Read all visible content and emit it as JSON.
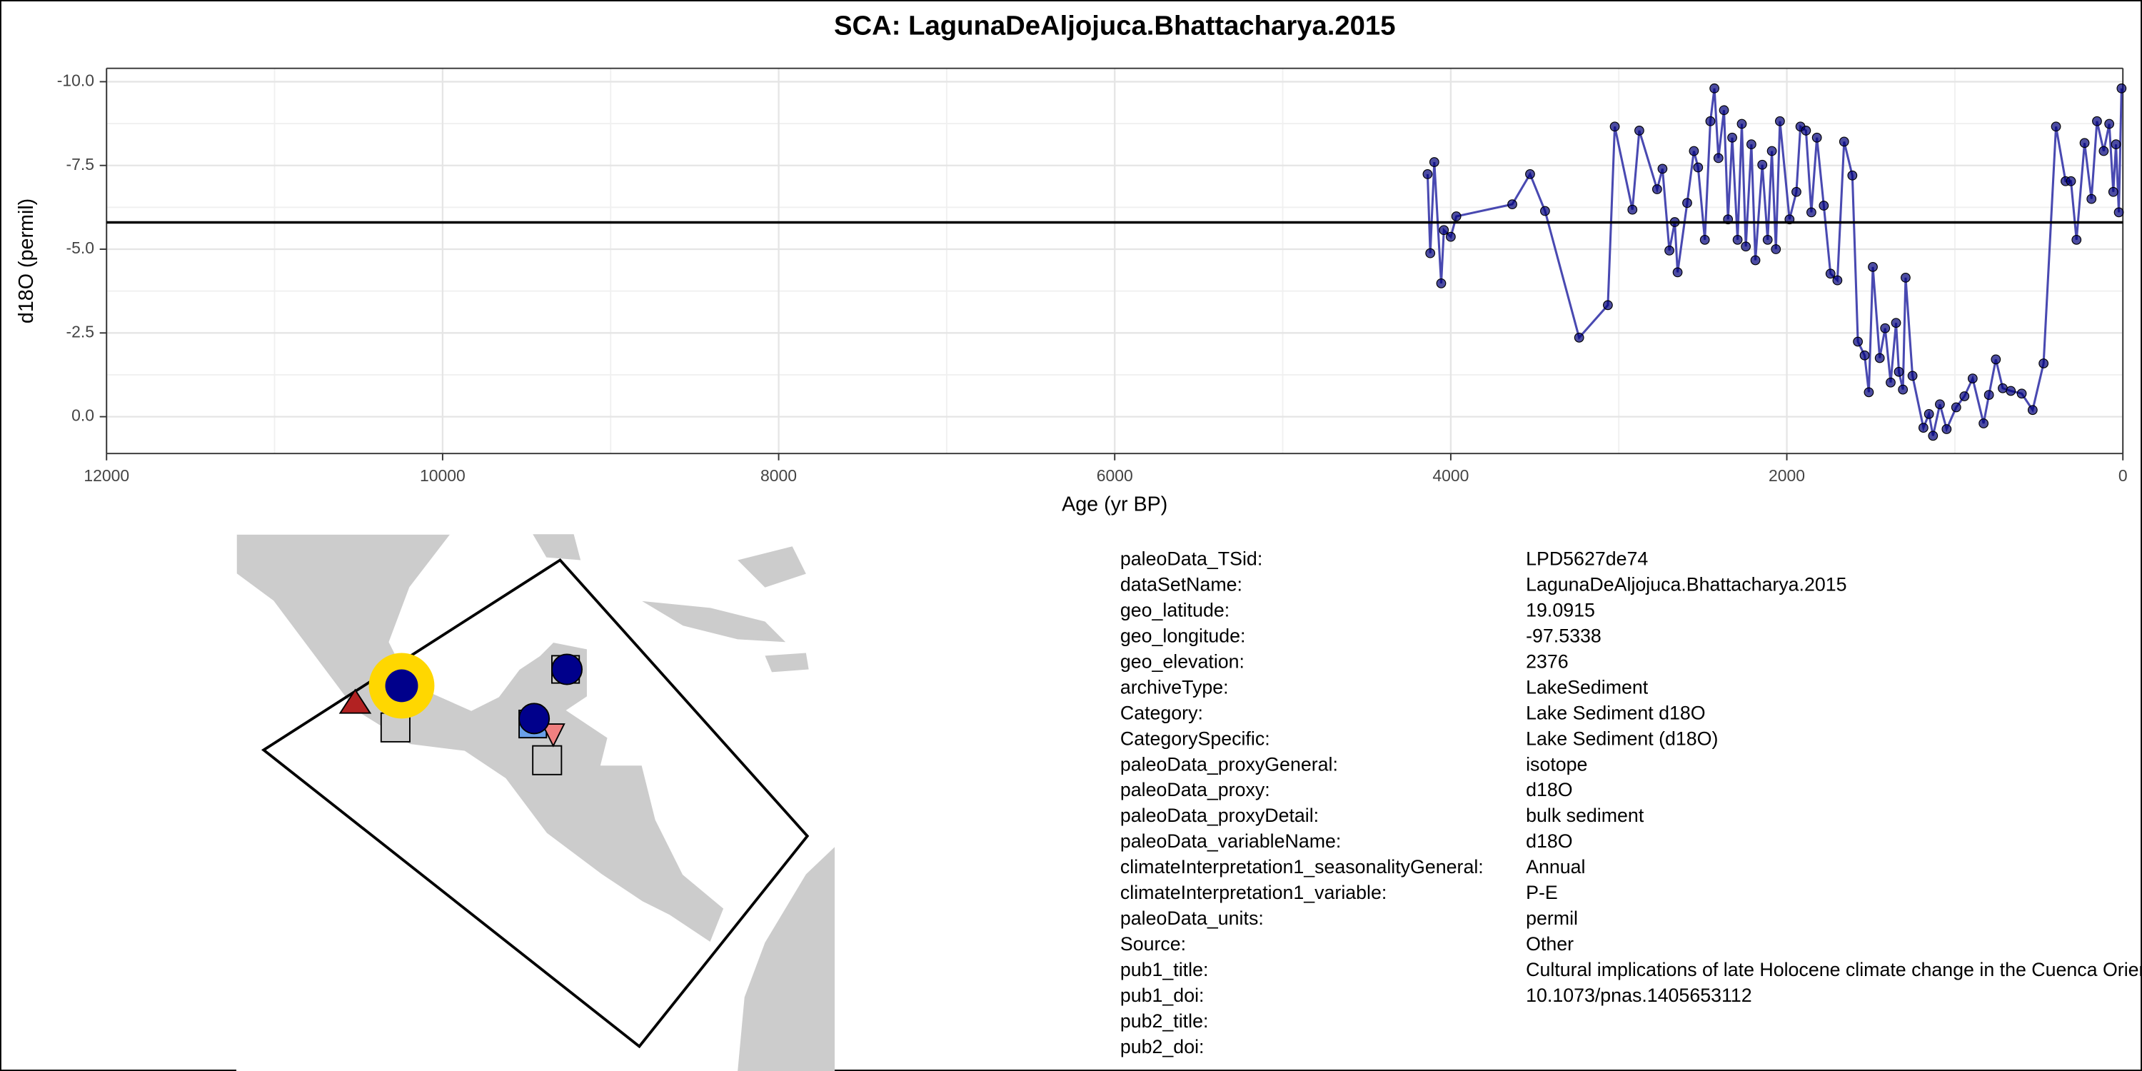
{
  "chart_data": {
    "type": "line",
    "title": "SCA: LagunaDeAljojuca.Bhattacharya.2015",
    "x_label": "Age (yr BP)",
    "y_label": "d18O (permil)",
    "xlim": [
      12000,
      0
    ],
    "xticks": [
      12000,
      10000,
      8000,
      6000,
      4000,
      2000,
      0
    ],
    "ylim": [
      1.1,
      -10.4
    ],
    "yticks": [
      {
        "value": -10,
        "label": "-10.0"
      },
      {
        "value": -7.5,
        "label": "-7.5"
      },
      {
        "value": -5,
        "label": "-5.0"
      },
      {
        "value": -2.5,
        "label": "-2.5"
      },
      {
        "value": 0,
        "label": "0.0"
      }
    ],
    "grid": true,
    "hline": -5.8,
    "series": [
      {
        "name": "d18O",
        "color": "#3535a8",
        "marker_color": "#00007a",
        "x": [
          4138,
          4122,
          4098,
          4057,
          4041,
          4000,
          3967,
          3634,
          3528,
          3439,
          3236,
          3065,
          3024,
          2919,
          2878,
          2772,
          2740,
          2699,
          2667,
          2650,
          2593,
          2553,
          2528,
          2488,
          2455,
          2431,
          2407,
          2374,
          2350,
          2325,
          2293,
          2268,
          2244,
          2211,
          2187,
          2146,
          2114,
          2089,
          2065,
          2041,
          1984,
          1943,
          1919,
          1886,
          1854,
          1821,
          1780,
          1740,
          1699,
          1659,
          1610,
          1577,
          1537,
          1512,
          1488,
          1447,
          1415,
          1382,
          1350,
          1333,
          1309,
          1293,
          1252,
          1187,
          1154,
          1130,
          1089,
          1049,
          992,
          943,
          894,
          829,
          797,
          756,
          715,
          667,
          602,
          537,
          472,
          398,
          341,
          309,
          276,
          228,
          187,
          154,
          114,
          81,
          57,
          41,
          24,
          8
        ],
        "values": [
          -7.24,
          -4.88,
          -7.6,
          -3.98,
          -5.57,
          -5.37,
          -5.98,
          -6.34,
          -7.24,
          -6.14,
          -2.36,
          -3.33,
          -8.66,
          -6.18,
          -8.54,
          -6.79,
          -7.4,
          -4.96,
          -5.81,
          -4.31,
          -6.38,
          -7.93,
          -7.44,
          -5.28,
          -8.82,
          -9.8,
          -7.72,
          -9.15,
          -5.89,
          -8.33,
          -5.28,
          -8.74,
          -5.08,
          -8.13,
          -4.67,
          -7.52,
          -5.28,
          -7.93,
          -5.0,
          -8.82,
          -5.89,
          -6.71,
          -8.66,
          -8.54,
          -6.1,
          -8.33,
          -6.3,
          -4.27,
          -4.07,
          -8.21,
          -7.2,
          -2.24,
          -1.83,
          -0.73,
          -4.47,
          -1.75,
          -2.64,
          -1.02,
          -2.8,
          -1.34,
          -0.81,
          -4.15,
          -1.22,
          0.33,
          -0.08,
          0.57,
          -0.37,
          0.37,
          -0.28,
          -0.61,
          -1.14,
          0.2,
          -0.65,
          -1.71,
          -0.85,
          -0.77,
          -0.69,
          -0.2,
          -1.59,
          -8.66,
          -7.03,
          -7.03,
          -5.28,
          -8.17,
          -6.5,
          -8.82,
          -7.93,
          -8.74,
          -6.71,
          -8.13,
          -6.1,
          -9.8
        ]
      }
    ]
  },
  "metadata": {
    "rows": [
      [
        "paleoData_TSid:",
        "LPD5627de74"
      ],
      [
        "dataSetName:",
        "LagunaDeAljojuca.Bhattacharya.2015"
      ],
      [
        "geo_latitude:",
        "19.0915"
      ],
      [
        "geo_longitude:",
        "-97.5338"
      ],
      [
        "geo_elevation:",
        "2376"
      ],
      [
        "archiveType:",
        "LakeSediment"
      ],
      [
        "Category:",
        "Lake Sediment d18O"
      ],
      [
        "CategorySpecific:",
        "Lake Sediment (d18O)"
      ],
      [
        "paleoData_proxyGeneral:",
        "isotope"
      ],
      [
        "paleoData_proxy:",
        "d18O"
      ],
      [
        "paleoData_proxyDetail:",
        "bulk sediment"
      ],
      [
        "paleoData_variableName:",
        "d18O"
      ],
      [
        "climateInterpretation1_seasonalityGeneral:",
        "Annual"
      ],
      [
        "climateInterpretation1_variable:",
        "P-E"
      ],
      [
        "paleoData_units:",
        "permil"
      ],
      [
        "Source:",
        "Other"
      ],
      [
        "pub1_title:",
        "Cultural implications of late Holocene climate change in the Cuenca Oriental, Mexico"
      ],
      [
        "pub1_doi:",
        "10.1073/pnas.1405653112"
      ],
      [
        "pub2_title:"
      ],
      [
        "pub2_doi:"
      ]
    ]
  }
}
